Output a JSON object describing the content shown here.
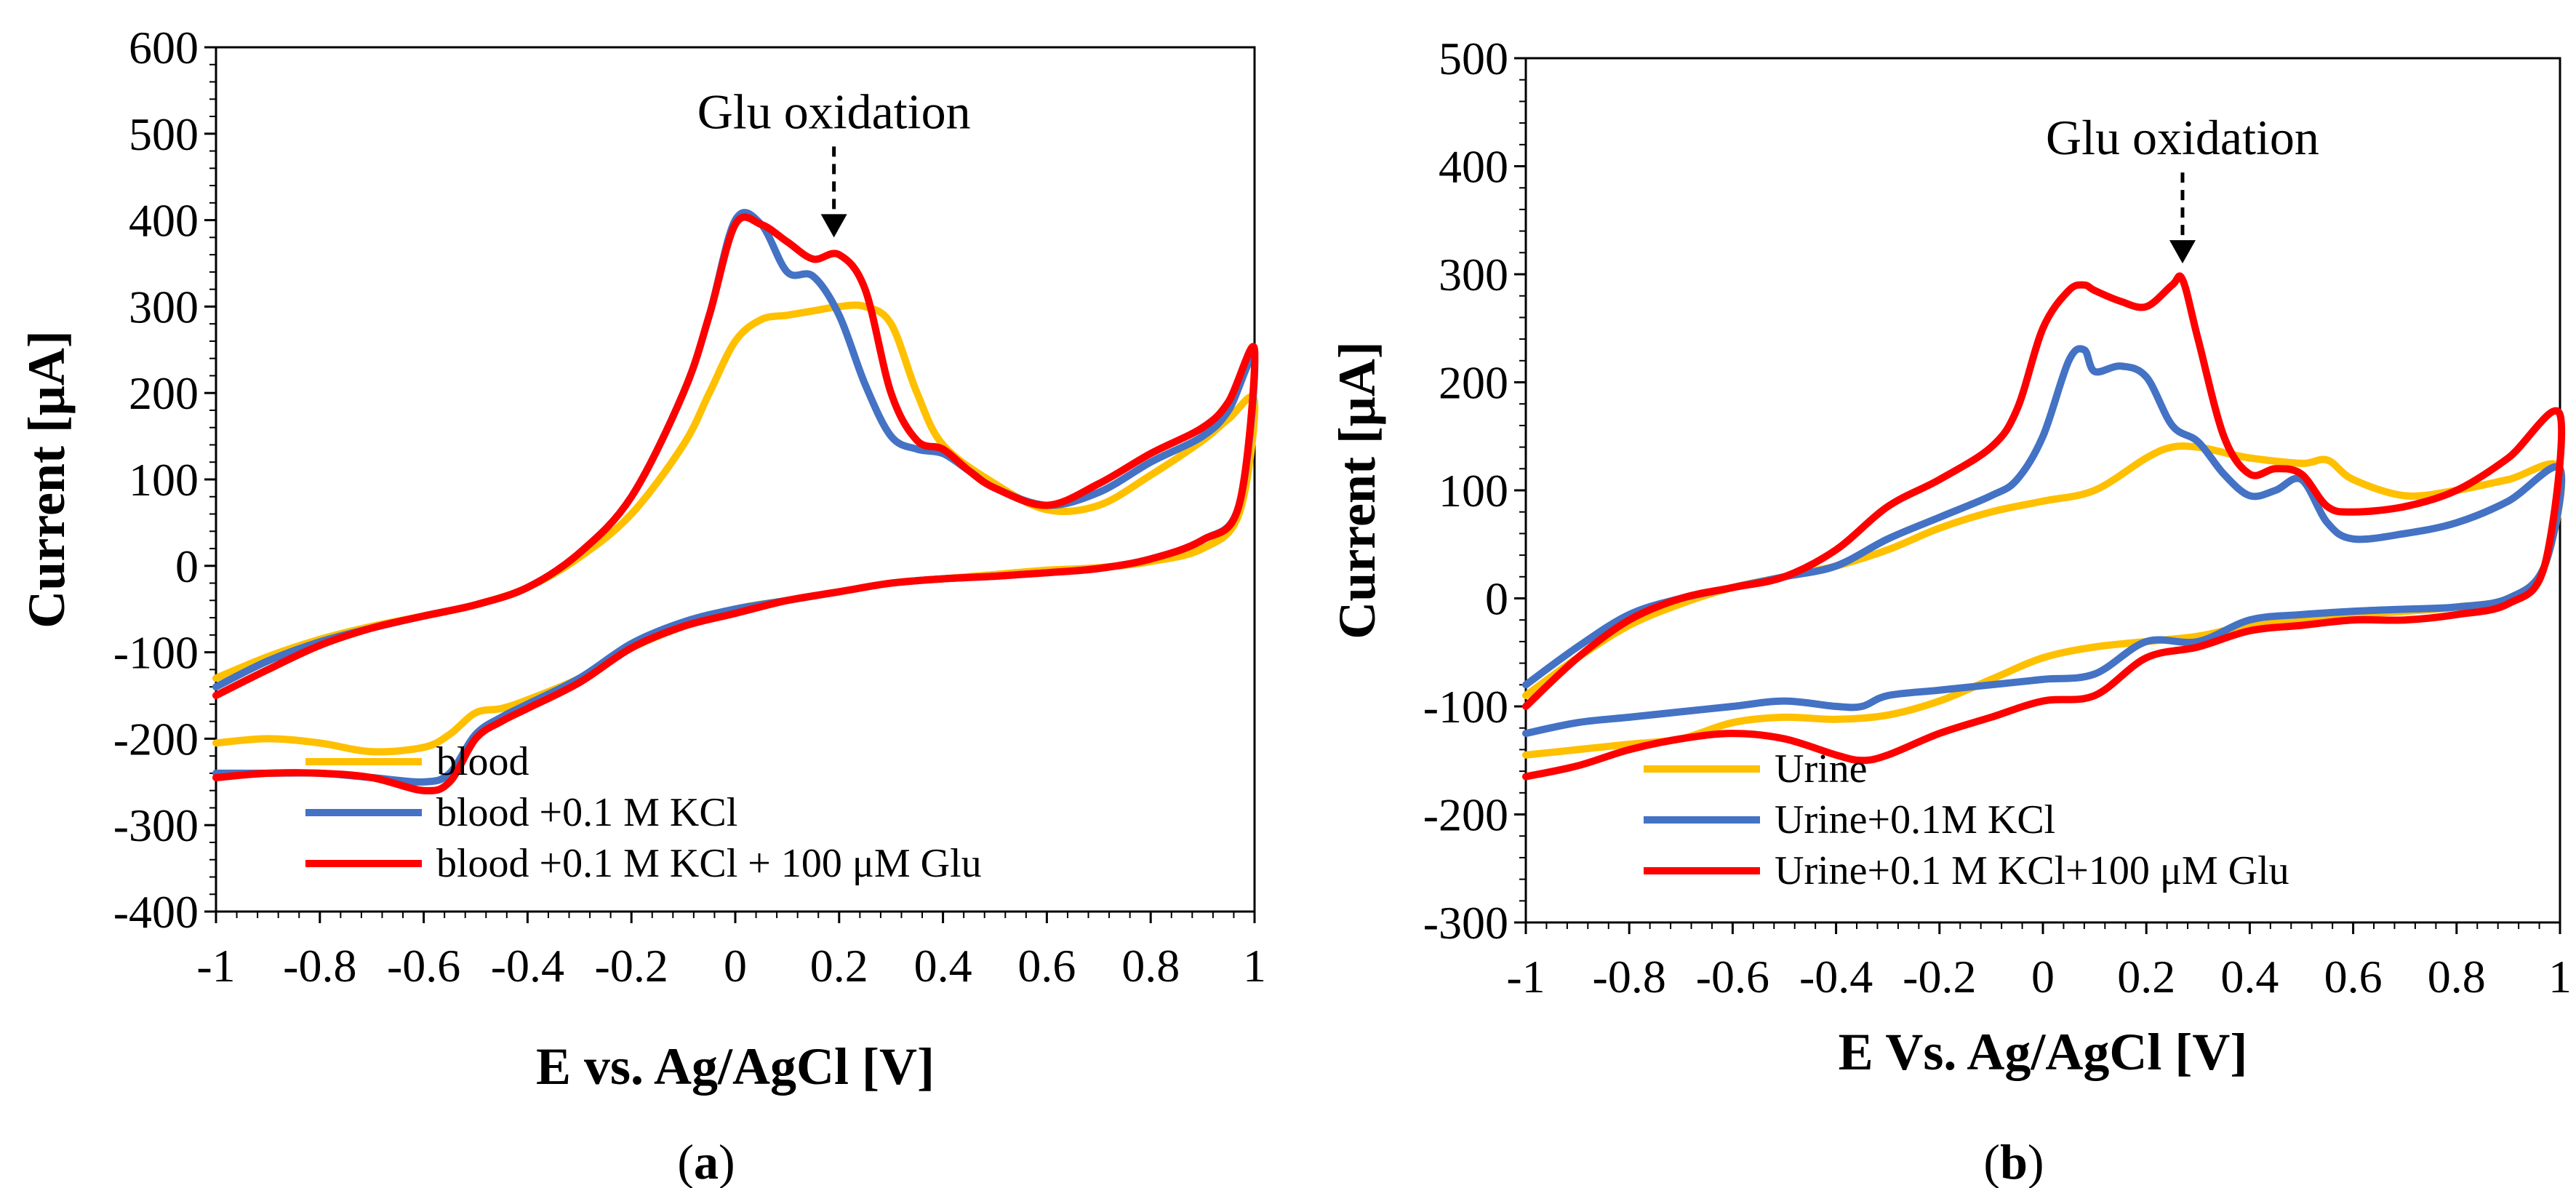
{
  "chart_data": [
    {
      "type": "line",
      "caption": {
        "open": "(",
        "letter": "a",
        "close": ")"
      },
      "xlabel": "E vs. Ag/AgCl [V]",
      "ylabel": "Current [μA]",
      "xlim": [
        -1,
        1
      ],
      "ylim": [
        -400,
        600
      ],
      "xticks": [
        "-1",
        "-0.8",
        "-0.6",
        "-0.4",
        "-0.2",
        "0",
        "0.2",
        "0.4",
        "0.6",
        "0.8",
        "1"
      ],
      "yticks": [
        "600",
        "500",
        "400",
        "300",
        "200",
        "100",
        "0",
        "-100",
        "-200",
        "-300",
        "-400"
      ],
      "annotation": {
        "text": "Glu  oxidation",
        "x": 0.19,
        "y": 380
      },
      "series": [
        {
          "name": "blood",
          "color": "#FFC000",
          "x": [
            -1,
            -0.9,
            -0.8,
            -0.7,
            -0.6,
            -0.5,
            -0.4,
            -0.3,
            -0.2,
            -0.1,
            -0.05,
            0,
            0.05,
            0.1,
            0.15,
            0.2,
            0.25,
            0.3,
            0.35,
            0.4,
            0.5,
            0.6,
            0.7,
            0.8,
            0.9,
            0.95,
            1,
            0.97,
            0.9,
            0.8,
            0.7,
            0.6,
            0.5,
            0.4,
            0.3,
            0.2,
            0.1,
            0,
            -0.1,
            -0.2,
            -0.3,
            -0.4,
            -0.45,
            -0.5,
            -0.55,
            -0.6,
            -0.7,
            -0.8,
            -0.9,
            -1
          ],
          "y": [
            -130,
            -105,
            -85,
            -70,
            -58,
            -45,
            -25,
            10,
            60,
            140,
            200,
            260,
            285,
            290,
            295,
            300,
            300,
            280,
            200,
            140,
            95,
            65,
            70,
            105,
            145,
            170,
            190,
            60,
            20,
            5,
            -2,
            -5,
            -10,
            -15,
            -20,
            -30,
            -40,
            -50,
            -70,
            -95,
            -130,
            -155,
            -165,
            -170,
            -195,
            -210,
            -215,
            -205,
            -200,
            -205
          ]
        },
        {
          "name": "blood +0.1 M KCl",
          "color": "#4472C4",
          "x": [
            -1,
            -0.9,
            -0.8,
            -0.7,
            -0.6,
            -0.5,
            -0.4,
            -0.3,
            -0.2,
            -0.1,
            -0.05,
            0,
            0.05,
            0.1,
            0.15,
            0.2,
            0.25,
            0.3,
            0.35,
            0.4,
            0.45,
            0.5,
            0.6,
            0.7,
            0.8,
            0.9,
            0.95,
            1,
            0.97,
            0.9,
            0.8,
            0.7,
            0.6,
            0.5,
            0.4,
            0.3,
            0.2,
            0.1,
            0,
            -0.1,
            -0.2,
            -0.3,
            -0.4,
            -0.45,
            -0.5,
            -0.55,
            -0.6,
            -0.7,
            -0.8,
            -0.9,
            -1
          ],
          "y": [
            -140,
            -110,
            -88,
            -72,
            -58,
            -45,
            -25,
            15,
            80,
            200,
            290,
            400,
            395,
            340,
            335,
            290,
            210,
            150,
            135,
            130,
            110,
            90,
            70,
            85,
            120,
            150,
            180,
            240,
            70,
            30,
            8,
            -3,
            -8,
            -12,
            -15,
            -20,
            -30,
            -40,
            -50,
            -65,
            -90,
            -130,
            -160,
            -175,
            -195,
            -240,
            -250,
            -245,
            -240,
            -240,
            -240
          ]
        },
        {
          "name": "blood +0.1 M KCl + 100 μM Glu",
          "color": "#FF0000",
          "x": [
            -1,
            -0.9,
            -0.8,
            -0.7,
            -0.6,
            -0.5,
            -0.4,
            -0.3,
            -0.2,
            -0.1,
            -0.05,
            0,
            0.05,
            0.1,
            0.15,
            0.2,
            0.25,
            0.3,
            0.35,
            0.4,
            0.45,
            0.5,
            0.6,
            0.7,
            0.8,
            0.9,
            0.95,
            1,
            0.97,
            0.9,
            0.8,
            0.7,
            0.6,
            0.5,
            0.4,
            0.3,
            0.2,
            0.1,
            0,
            -0.1,
            -0.2,
            -0.3,
            -0.4,
            -0.45,
            -0.5,
            -0.55,
            -0.6,
            -0.7,
            -0.8,
            -0.9,
            -1
          ],
          "y": [
            -150,
            -120,
            -92,
            -72,
            -58,
            -45,
            -25,
            15,
            80,
            200,
            290,
            395,
            395,
            375,
            355,
            360,
            320,
            200,
            145,
            135,
            110,
            90,
            70,
            95,
            130,
            160,
            190,
            250,
            70,
            30,
            8,
            -3,
            -8,
            -12,
            -15,
            -20,
            -30,
            -40,
            -55,
            -70,
            -95,
            -135,
            -165,
            -180,
            -200,
            -250,
            -260,
            -245,
            -240,
            -240,
            -245
          ]
        }
      ]
    },
    {
      "type": "line",
      "caption": {
        "open": "(",
        "letter": "b",
        "close": ")"
      },
      "xlabel": "E Vs. Ag/AgCl [V]",
      "ylabel": "Current [μA]",
      "xlim": [
        -1,
        1
      ],
      "ylim": [
        -300,
        500
      ],
      "xticks": [
        "-1",
        "-0.8",
        "-0.6",
        "-0.4",
        "-0.2",
        "0",
        "0.2",
        "0.4",
        "0.6",
        "0.8",
        "1"
      ],
      "yticks": [
        "500",
        "400",
        "300",
        "200",
        "100",
        "0",
        "-100",
        "-200",
        "-300"
      ],
      "annotation": {
        "text": "Glu oxidation",
        "x": 0.27,
        "y": 310
      },
      "series": [
        {
          "name": "Urine",
          "color": "#FFC000",
          "x": [
            -1,
            -0.9,
            -0.8,
            -0.7,
            -0.6,
            -0.5,
            -0.4,
            -0.3,
            -0.2,
            -0.1,
            0,
            0.1,
            0.2,
            0.25,
            0.3,
            0.35,
            0.4,
            0.5,
            0.55,
            0.6,
            0.7,
            0.8,
            0.9,
            1,
            0.97,
            0.9,
            0.8,
            0.7,
            0.6,
            0.5,
            0.4,
            0.3,
            0.2,
            0.1,
            0,
            -0.1,
            -0.2,
            -0.3,
            -0.4,
            -0.5,
            -0.6,
            -0.7,
            -0.8,
            -0.9,
            -1
          ],
          "y": [
            -90,
            -55,
            -25,
            -5,
            10,
            20,
            30,
            45,
            65,
            80,
            90,
            100,
            130,
            140,
            140,
            135,
            130,
            125,
            128,
            110,
            95,
            100,
            110,
            120,
            30,
            0,
            -8,
            -12,
            -15,
            -20,
            -25,
            -35,
            -40,
            -45,
            -55,
            -75,
            -95,
            -108,
            -112,
            -110,
            -115,
            -130,
            -135,
            -140,
            -145
          ]
        },
        {
          "name": "Urine+0.1M KCl",
          "color": "#4472C4",
          "x": [
            -1,
            -0.9,
            -0.8,
            -0.7,
            -0.6,
            -0.5,
            -0.4,
            -0.3,
            -0.2,
            -0.1,
            -0.05,
            0,
            0.05,
            0.08,
            0.1,
            0.15,
            0.2,
            0.25,
            0.3,
            0.35,
            0.4,
            0.45,
            0.5,
            0.55,
            0.6,
            0.7,
            0.8,
            0.9,
            1,
            0.97,
            0.9,
            0.8,
            0.7,
            0.6,
            0.5,
            0.4,
            0.3,
            0.2,
            0.1,
            0,
            -0.1,
            -0.2,
            -0.3,
            -0.35,
            -0.4,
            -0.5,
            -0.6,
            -0.7,
            -0.8,
            -0.9,
            -1
          ],
          "y": [
            -80,
            -45,
            -15,
            0,
            10,
            20,
            30,
            55,
            75,
            95,
            110,
            150,
            220,
            230,
            210,
            215,
            205,
            160,
            145,
            115,
            95,
            100,
            110,
            70,
            55,
            60,
            70,
            90,
            120,
            30,
            0,
            -8,
            -10,
            -12,
            -15,
            -20,
            -40,
            -40,
            -70,
            -75,
            -80,
            -85,
            -90,
            -100,
            -100,
            -95,
            -100,
            -105,
            -110,
            -115,
            -125
          ]
        },
        {
          "name": "Urine+0.1 M KCl+100 μM  Glu",
          "color": "#FF0000",
          "x": [
            -1,
            -0.9,
            -0.8,
            -0.7,
            -0.6,
            -0.5,
            -0.4,
            -0.3,
            -0.2,
            -0.1,
            -0.05,
            0,
            0.05,
            0.08,
            0.1,
            0.15,
            0.2,
            0.25,
            0.27,
            0.3,
            0.35,
            0.4,
            0.45,
            0.5,
            0.55,
            0.6,
            0.7,
            0.8,
            0.9,
            1,
            0.97,
            0.9,
            0.8,
            0.7,
            0.6,
            0.5,
            0.4,
            0.3,
            0.2,
            0.1,
            0,
            -0.1,
            -0.2,
            -0.3,
            -0.35,
            -0.4,
            -0.5,
            -0.6,
            -0.7,
            -0.8,
            -0.9,
            -1
          ],
          "y": [
            -100,
            -55,
            -20,
            0,
            10,
            20,
            45,
            85,
            110,
            140,
            175,
            250,
            285,
            290,
            285,
            275,
            270,
            290,
            295,
            240,
            150,
            115,
            120,
            115,
            85,
            80,
            85,
            100,
            130,
            170,
            30,
            -5,
            -15,
            -20,
            -20,
            -25,
            -30,
            -45,
            -55,
            -90,
            -95,
            -110,
            -125,
            -145,
            -150,
            -145,
            -130,
            -125,
            -130,
            -140,
            -155,
            -165
          ]
        }
      ]
    }
  ]
}
